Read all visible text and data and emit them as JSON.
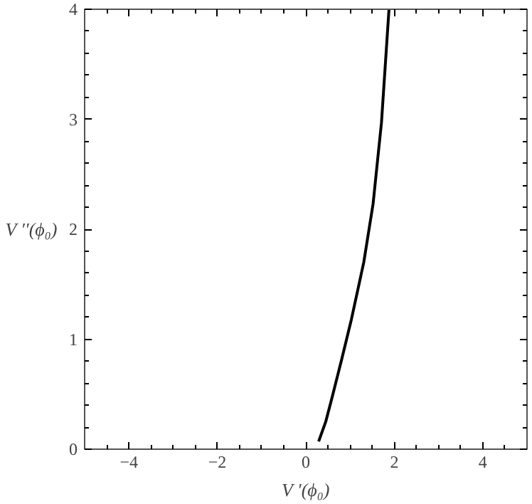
{
  "chart_data": {
    "type": "line",
    "xlabel": "V ′(ϕ₀)",
    "ylabel": "V ′′(ϕ₀)",
    "series": [
      {
        "color": "#000000",
        "x": [
          0.29,
          0.45,
          0.6,
          0.8,
          1.03,
          1.31,
          1.52,
          1.71,
          1.88
        ],
        "values": [
          0.07,
          0.25,
          0.48,
          0.8,
          1.18,
          1.7,
          2.23,
          2.97,
          4.0
        ]
      }
    ],
    "xlim": [
      -5,
      5
    ],
    "ylim": [
      0,
      4
    ],
    "xticks": [
      -4,
      -2,
      0,
      2,
      4
    ],
    "yticks": [
      0,
      1,
      2,
      3,
      4
    ],
    "grid": false,
    "marker": "none",
    "line_style": "solid"
  }
}
